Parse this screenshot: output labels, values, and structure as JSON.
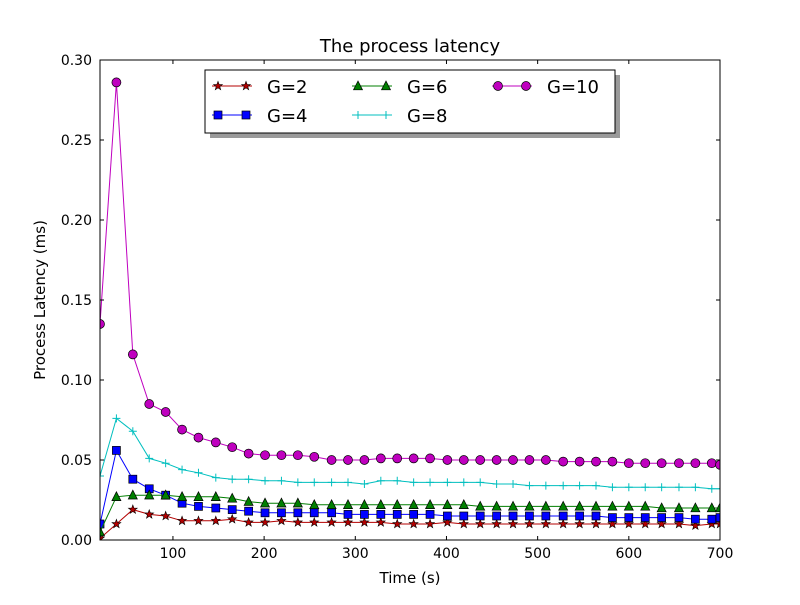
{
  "chart_data": {
    "type": "line",
    "title": "The process latency",
    "xlabel": "Time (s)",
    "ylabel": "Process Latency (ms)",
    "xlim": [
      20,
      700
    ],
    "ylim": [
      0,
      0.3
    ],
    "x_ticks": [
      100,
      200,
      300,
      400,
      500,
      600,
      700
    ],
    "y_ticks": [
      0.0,
      0.05,
      0.1,
      0.15,
      0.2,
      0.25,
      0.3
    ],
    "x_tick_labels": [
      "100",
      "200",
      "300",
      "400",
      "500",
      "600",
      "700"
    ],
    "y_tick_labels": [
      "0.00",
      "0.05",
      "0.10",
      "0.15",
      "0.20",
      "0.25",
      "0.30"
    ],
    "grid": false,
    "legend": {
      "placement": "top-center",
      "columns": 3
    },
    "x": [
      20,
      38,
      56,
      74,
      92,
      110,
      128,
      147,
      165,
      183,
      201,
      219,
      237,
      255,
      274,
      292,
      310,
      328,
      346,
      364,
      382,
      401,
      419,
      437,
      455,
      473,
      491,
      509,
      528,
      546,
      564,
      582,
      600,
      618,
      636,
      655,
      673,
      691,
      700
    ],
    "series": [
      {
        "name": "G=2",
        "color": "#b40000",
        "marker": "star",
        "values": [
          0.001,
          0.01,
          0.019,
          0.016,
          0.015,
          0.012,
          0.012,
          0.012,
          0.013,
          0.011,
          0.011,
          0.012,
          0.011,
          0.011,
          0.011,
          0.011,
          0.011,
          0.011,
          0.01,
          0.01,
          0.01,
          0.011,
          0.01,
          0.01,
          0.01,
          0.01,
          0.01,
          0.01,
          0.01,
          0.01,
          0.01,
          0.01,
          0.01,
          0.01,
          0.01,
          0.01,
          0.009,
          0.01,
          0.01
        ]
      },
      {
        "name": "G=4",
        "color": "#0000ff",
        "marker": "square",
        "values": [
          0.01,
          0.056,
          0.038,
          0.032,
          0.028,
          0.023,
          0.021,
          0.02,
          0.019,
          0.018,
          0.017,
          0.017,
          0.017,
          0.017,
          0.017,
          0.016,
          0.016,
          0.016,
          0.016,
          0.016,
          0.016,
          0.015,
          0.015,
          0.015,
          0.015,
          0.015,
          0.015,
          0.015,
          0.015,
          0.015,
          0.015,
          0.014,
          0.014,
          0.014,
          0.014,
          0.014,
          0.013,
          0.013,
          0.014
        ]
      },
      {
        "name": "G=6",
        "color": "#007f00",
        "marker": "triangle",
        "values": [
          0.005,
          0.027,
          0.028,
          0.028,
          0.028,
          0.027,
          0.027,
          0.027,
          0.026,
          0.024,
          0.023,
          0.023,
          0.023,
          0.022,
          0.022,
          0.022,
          0.022,
          0.022,
          0.022,
          0.022,
          0.022,
          0.022,
          0.022,
          0.021,
          0.021,
          0.021,
          0.021,
          0.021,
          0.021,
          0.021,
          0.021,
          0.021,
          0.021,
          0.021,
          0.02,
          0.02,
          0.02,
          0.02,
          0.02
        ]
      },
      {
        "name": "G=8",
        "color": "#00bfbf",
        "marker": "plus",
        "values": [
          0.04,
          0.076,
          0.068,
          0.051,
          0.048,
          0.044,
          0.042,
          0.039,
          0.038,
          0.038,
          0.037,
          0.037,
          0.036,
          0.036,
          0.036,
          0.036,
          0.035,
          0.037,
          0.037,
          0.036,
          0.036,
          0.036,
          0.036,
          0.036,
          0.035,
          0.035,
          0.034,
          0.034,
          0.034,
          0.034,
          0.034,
          0.033,
          0.033,
          0.033,
          0.033,
          0.033,
          0.033,
          0.032,
          0.032
        ]
      },
      {
        "name": "G=10",
        "color": "#bf00bf",
        "marker": "circle",
        "values": [
          0.135,
          0.286,
          0.116,
          0.085,
          0.08,
          0.069,
          0.064,
          0.061,
          0.058,
          0.054,
          0.053,
          0.053,
          0.053,
          0.052,
          0.05,
          0.05,
          0.05,
          0.051,
          0.051,
          0.051,
          0.051,
          0.05,
          0.05,
          0.05,
          0.05,
          0.05,
          0.05,
          0.05,
          0.049,
          0.049,
          0.049,
          0.049,
          0.048,
          0.048,
          0.048,
          0.048,
          0.048,
          0.048,
          0.047
        ]
      }
    ]
  }
}
